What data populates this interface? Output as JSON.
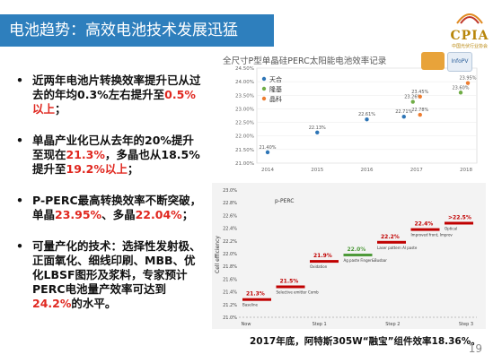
{
  "slide": {
    "title": "电池趋势：高效电池技术发展迅猛",
    "logo_text": "CPIA",
    "logo_subtext": "中国光伏行业协会",
    "page_number": "19",
    "caption": "2017年底，阿特斯305W“融宝”组件效率18.36%。"
  },
  "bullets": [
    {
      "segments": [
        "近两年电池片转换效率提升已从过去的年均0.3%左右提升至",
        "0.5%以上",
        "；"
      ]
    },
    {
      "segments": [
        "单晶产业化已从去年的20%提升至现在",
        "21.3%",
        "，多晶也从18.5%提升至",
        "19.2%以上",
        "；"
      ]
    },
    {
      "segments": [
        "P-PERC最高转换效率不断突破，单晶",
        "23.95%",
        "、多晶",
        "22.04%",
        "；"
      ]
    },
    {
      "segments": [
        "可量产化的技术：选择性发射极、正面氧化、细线印刷、MBB、优化LBSF图形及浆料，专家预计PERC电池量产效率可达到",
        "24.2%",
        "的水平。"
      ]
    }
  ],
  "colors": {
    "title_bg": "#2e7fbd",
    "accent_red": "#e0271f",
    "tianhe": "#2e75b6",
    "longi": "#70ad47",
    "jinko": "#ed7d31",
    "step_red": "#c00000",
    "step_green": "#4e9a3a"
  },
  "chart_data": [
    {
      "type": "scatter",
      "title": "全尺寸P型单晶硅PERC太阳能电池效率记录",
      "x_ticks": [
        "2014",
        "2015",
        "2016",
        "2017",
        "2018"
      ],
      "y_ticks": [
        "21.00%",
        "21.50%",
        "22.00%",
        "22.50%",
        "23.00%",
        "23.50%",
        "24.00%",
        "24.50%"
      ],
      "ylim": [
        21.0,
        24.5
      ],
      "legend": [
        "天合",
        "隆基",
        "晶科"
      ],
      "legend_position": "top-left",
      "points": [
        {
          "x": "2014",
          "y": 21.4,
          "label": "21.40%",
          "color": "#2e75b6"
        },
        {
          "x": "2015",
          "y": 22.13,
          "label": "22.13%",
          "color": "#2e75b6"
        },
        {
          "x": "2016",
          "y": 22.61,
          "label": "22.61%",
          "color": "#2e75b6"
        },
        {
          "x": "2017",
          "y": 22.71,
          "label": "22.71%",
          "color": "#2e75b6"
        },
        {
          "x": "2017",
          "y": 22.78,
          "label": "22.78%",
          "color": "#ed7d31"
        },
        {
          "x": "2017",
          "y": 23.26,
          "label": "23.26%",
          "color": "#70ad47"
        },
        {
          "x": "2017",
          "y": 23.45,
          "label": "23.45%",
          "color": "#ed7d31"
        },
        {
          "x": "2018",
          "y": 23.6,
          "label": "23.60%",
          "color": "#70ad47"
        },
        {
          "x": "2018",
          "y": 23.95,
          "label": "23.95%",
          "color": "#ed7d31"
        }
      ]
    },
    {
      "type": "bar",
      "title": "p-PERC",
      "ylabel": "Cell efficiency",
      "y_ticks": [
        "21.0%",
        "21.2%",
        "21.4%",
        "21.6%",
        "21.8%",
        "22.0%",
        "22.2%",
        "22.4%",
        "22.6%",
        "22.8%",
        "23.0%"
      ],
      "ylim": [
        21.0,
        23.0
      ],
      "x_ticks": [
        "Now",
        "Step 1",
        "Step 2",
        "Step 3"
      ],
      "steps": [
        {
          "value": 21.3,
          "label": "21.3%",
          "name": "Baseline",
          "color": "#c00000"
        },
        {
          "value": 21.5,
          "label": "21.5%",
          "name": "Selective emitter Combination control",
          "color": "#c00000"
        },
        {
          "value": 21.9,
          "label": "21.9%",
          "name": "Oxidation",
          "color": "#c00000"
        },
        {
          "value": 22.0,
          "label": "22.0%",
          "name": "Ag paste Finger&Busbar printing optimization",
          "color": "#4e9a3a"
        },
        {
          "value": 22.2,
          "label": "22.2%",
          "name": "Laser pattern Al paste",
          "color": "#c00000"
        },
        {
          "value": 22.4,
          "label": "22.4%",
          "name": "Improved front, Improved rear Lifetime",
          "color": "#c00000"
        },
        {
          "value": 22.5,
          "label": ">22.5%",
          "name": "Optical",
          "color": "#c00000"
        }
      ]
    }
  ]
}
